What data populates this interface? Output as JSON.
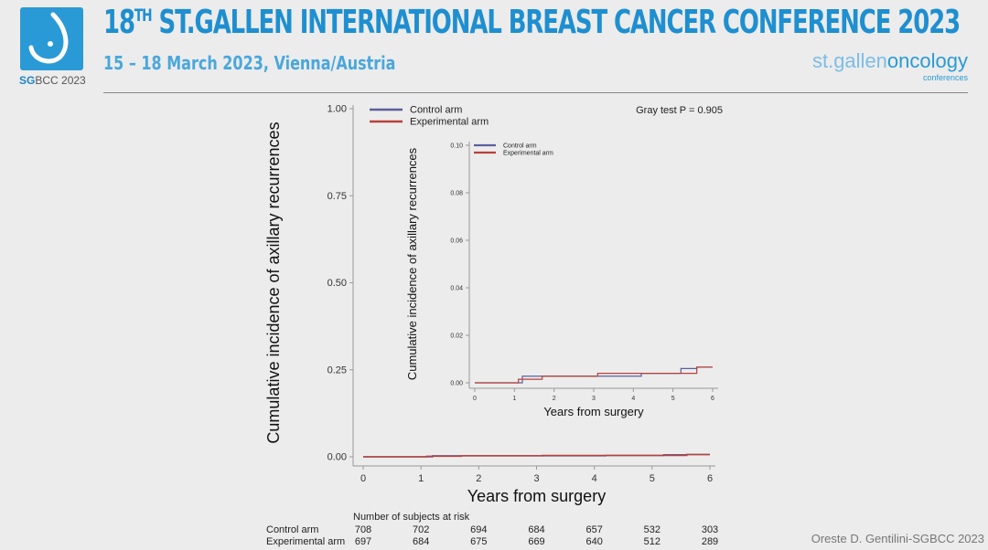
{
  "header": {
    "logo_caption_bold": "SG",
    "logo_caption_rest": "BCC 2023",
    "title_pre": "18",
    "title_sup": "TH",
    "title_post": " ST.GALLEN INTERNATIONAL BREAST CANCER CONFERENCE 2023",
    "subtitle": "15 – 18 March 2023, Vienna/Austria",
    "right_logo_a": "st.gallen",
    "right_logo_b": "oncology",
    "right_logo_c": "conferences"
  },
  "footer": {
    "credit": "Oreste D. Gentilini-SGBCC 2023"
  },
  "colors": {
    "control": "#5b5f9e",
    "experimental": "#b8413a",
    "brand": "#1e8fd0"
  },
  "chart_data": [
    {
      "type": "line",
      "step": true,
      "xlabel": "Years from surgery",
      "ylabel": "Cumulative incidence of axillary recurrences",
      "xlim": [
        0,
        6
      ],
      "ylim": [
        0,
        1
      ],
      "xticks": [
        "0",
        "1",
        "2",
        "3",
        "4",
        "5",
        "6"
      ],
      "yticks": [
        "0.00",
        "0.25",
        "0.50",
        "0.75",
        "1.00"
      ],
      "legend_placement": "top-left",
      "annotation": "Gray test P = 0.905",
      "series": [
        {
          "name": "Control arm",
          "x": [
            0,
            1.2,
            3.1,
            4.2,
            5.2,
            5.6,
            6
          ],
          "y": [
            0,
            0.0028,
            0.0028,
            0.004,
            0.006,
            0.0066,
            0.0066
          ]
        },
        {
          "name": "Experimental arm",
          "x": [
            0,
            1.1,
            1.7,
            3.1,
            5.6,
            6
          ],
          "y": [
            0,
            0.0015,
            0.0028,
            0.004,
            0.0066,
            0.0066
          ]
        }
      ],
      "risk_table": {
        "title": "Number of subjects at risk",
        "rows": [
          {
            "label": "Control arm",
            "values": [
              708,
              702,
              694,
              684,
              657,
              532,
              303
            ]
          },
          {
            "label": "Experimental arm",
            "values": [
              697,
              684,
              675,
              669,
              640,
              512,
              289
            ]
          }
        ]
      }
    },
    {
      "type": "line",
      "step": true,
      "xlabel": "Years from surgery",
      "ylabel": "Cumulative incidence of axillary recurrences",
      "xlim": [
        0,
        6
      ],
      "ylim": [
        0,
        0.1
      ],
      "xticks": [
        "0",
        "1",
        "2",
        "3",
        "4",
        "5",
        "6"
      ],
      "yticks": [
        "0.00",
        "0.02",
        "0.04",
        "0.06",
        "0.08",
        "0.10"
      ],
      "legend_placement": "top-left",
      "series": [
        {
          "name": "Control arm",
          "x": [
            0,
            1.2,
            3.1,
            4.2,
            5.2,
            5.6,
            6
          ],
          "y": [
            0,
            0.0028,
            0.0028,
            0.004,
            0.006,
            0.0066,
            0.0066
          ]
        },
        {
          "name": "Experimental arm",
          "x": [
            0,
            1.1,
            1.7,
            3.1,
            5.6,
            6
          ],
          "y": [
            0,
            0.0015,
            0.0028,
            0.004,
            0.0066,
            0.0066
          ]
        }
      ]
    }
  ]
}
